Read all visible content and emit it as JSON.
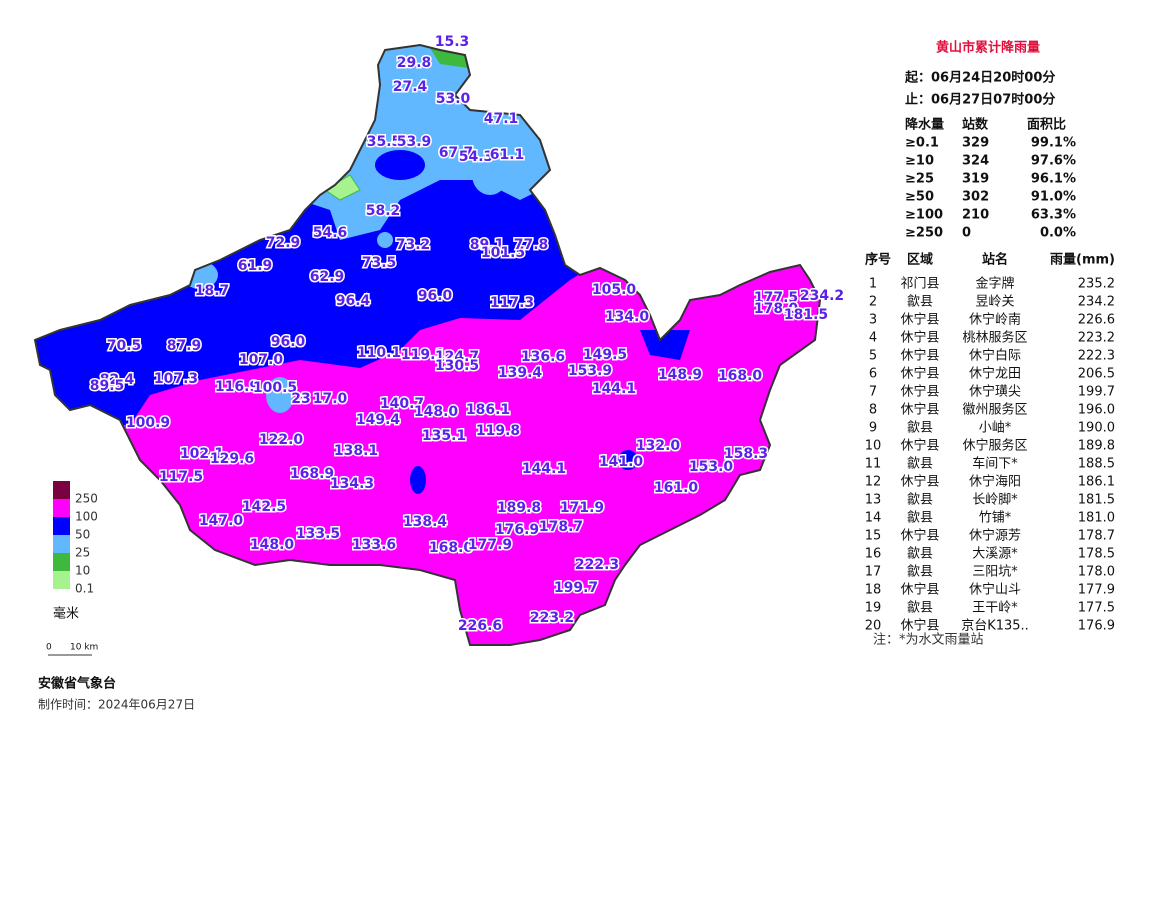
{
  "map": {
    "value_labels": [
      "15.3",
      "29.8",
      "27.4",
      "53.0",
      "47.1",
      "35.5",
      "53.9",
      "67.7",
      "54.3",
      "61.1",
      "58.2",
      "54.6",
      "72.9",
      "73.2",
      "89.1",
      "101.5",
      "77.8",
      "61.9",
      "73.5",
      "62.9",
      "18.7",
      "96.4",
      "96.0",
      "117.3",
      "105.0",
      "177.5",
      "234.2",
      "178.0",
      "181.5",
      "134.0",
      "70.5",
      "87.9",
      "96.0",
      "107.0",
      "110.1",
      "119.1",
      "124.7",
      "130.5",
      "136.6",
      "149.5",
      "82.4",
      "89.5",
      "107.3",
      "139.4",
      "153.9",
      "148.9",
      "168.0",
      "116.9",
      "100.5",
      "23",
      "17.0",
      "144.1",
      "140.7",
      "148.0",
      "186.1",
      "149.4",
      "100.9",
      "119.8",
      "135.1",
      "122.0",
      "132.0",
      "138.1",
      "158.3",
      "102.1",
      "129.6",
      "141.0",
      "144.1",
      "153.0",
      "117.5",
      "168.9",
      "134.3",
      "161.0",
      "142.5",
      "189.8",
      "171.9",
      "147.0",
      "138.4",
      "178.7",
      "176.9",
      "133.5",
      "148.0",
      "133.6",
      "168.0",
      "177.9",
      "222.3",
      "199.7",
      "223.2",
      "226.6"
    ]
  },
  "legend": {
    "items": [
      {
        "label": "250",
        "color": "#7a0040"
      },
      {
        "label": "100",
        "color": "#ff00ff"
      },
      {
        "label": "50",
        "color": "#0000ff"
      },
      {
        "label": "25",
        "color": "#61b8ff"
      },
      {
        "label": "10",
        "color": "#3db93d"
      },
      {
        "label": "0.1",
        "color": "#a6f28f"
      }
    ],
    "unit": "毫米",
    "scale_zero": "0",
    "scale": "10 km"
  },
  "panel": {
    "title": "黄山市累计降雨量",
    "start": "起：06月24日20时00分",
    "end": "止：06月27日07时00分",
    "stats": {
      "header": [
        "降水量",
        "站数",
        "面积比"
      ],
      "rows": [
        [
          "≥0.1",
          "329",
          "99.1%"
        ],
        [
          "≥10",
          "324",
          "97.6%"
        ],
        [
          "≥25",
          "319",
          "96.1%"
        ],
        [
          "≥50",
          "302",
          "91.0%"
        ],
        [
          "≥100",
          "210",
          "63.3%"
        ],
        [
          "≥250",
          "0",
          "0.0%"
        ]
      ]
    },
    "ranking": {
      "header": [
        "序号",
        "区域",
        "站名",
        "雨量(mm)"
      ],
      "rows": [
        [
          "1",
          "祁门县",
          "金字牌",
          "235.2"
        ],
        [
          "2",
          "歙县",
          "昱岭关",
          "234.2"
        ],
        [
          "3",
          "休宁县",
          "休宁岭南",
          "226.6"
        ],
        [
          "4",
          "休宁县",
          "桃林服务区",
          "223.2"
        ],
        [
          "5",
          "休宁县",
          "休宁白际",
          "222.3"
        ],
        [
          "6",
          "休宁县",
          "休宁龙田",
          "206.5"
        ],
        [
          "7",
          "休宁县",
          "休宁璜尖",
          "199.7"
        ],
        [
          "8",
          "休宁县",
          "徽州服务区",
          "196.0"
        ],
        [
          "9",
          "歙县",
          "小岫*",
          "190.0"
        ],
        [
          "10",
          "休宁县",
          "休宁服务区",
          "189.8"
        ],
        [
          "11",
          "歙县",
          "车间下*",
          "188.5"
        ],
        [
          "12",
          "休宁县",
          "休宁海阳",
          "186.1"
        ],
        [
          "13",
          "歙县",
          "长岭脚*",
          "181.5"
        ],
        [
          "14",
          "歙县",
          "竹铺*",
          "181.0"
        ],
        [
          "15",
          "休宁县",
          "休宁源芳",
          "178.7"
        ],
        [
          "16",
          "歙县",
          "大溪源*",
          "178.5"
        ],
        [
          "17",
          "歙县",
          "三阳坑*",
          "178.0"
        ],
        [
          "18",
          "休宁县",
          "休宁山斗",
          "177.9"
        ],
        [
          "19",
          "歙县",
          "王干岭*",
          "177.5"
        ],
        [
          "20",
          "休宁县",
          "京台K135..",
          "176.9"
        ]
      ]
    },
    "note": "注：*为水文雨量站"
  },
  "footer": {
    "org": "安徽省气象台",
    "date": "制作时间：2024年06月27日"
  }
}
